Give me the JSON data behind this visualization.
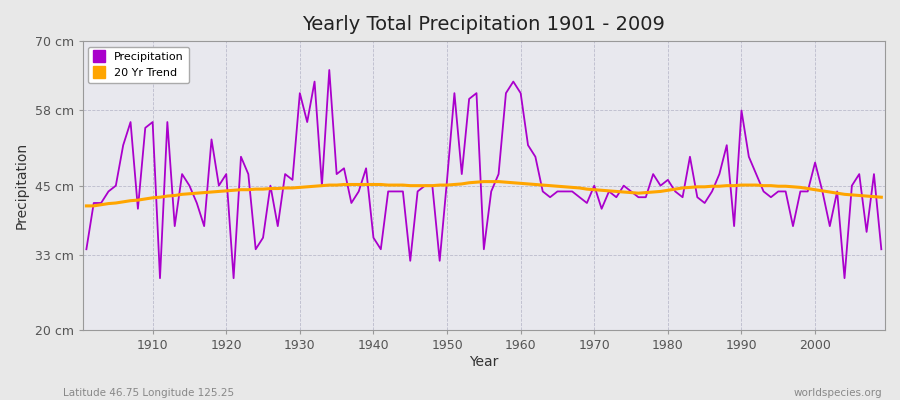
{
  "title": "Yearly Total Precipitation 1901 - 2009",
  "xlabel": "Year",
  "ylabel": "Precipitation",
  "subtitle_left": "Latitude 46.75 Longitude 125.25",
  "subtitle_right": "worldspecies.org",
  "ylim": [
    20,
    70
  ],
  "yticks": [
    20,
    33,
    45,
    58,
    70
  ],
  "ytick_labels": [
    "20 cm",
    "33 cm",
    "45 cm",
    "58 cm",
    "70 cm"
  ],
  "xlim": [
    1901,
    2009
  ],
  "xticks": [
    1910,
    1920,
    1930,
    1940,
    1950,
    1960,
    1970,
    1980,
    1990,
    2000
  ],
  "precip_color": "#AA00CC",
  "trend_color": "#FFA500",
  "bg_color": "#E8E8E8",
  "inner_bg_color": "#E8E8EE",
  "grid_color": "#BBBBCC",
  "years": [
    1901,
    1902,
    1903,
    1904,
    1905,
    1906,
    1907,
    1908,
    1909,
    1910,
    1911,
    1912,
    1913,
    1914,
    1915,
    1916,
    1917,
    1918,
    1919,
    1920,
    1921,
    1922,
    1923,
    1924,
    1925,
    1926,
    1927,
    1928,
    1929,
    1930,
    1931,
    1932,
    1933,
    1934,
    1935,
    1936,
    1937,
    1938,
    1939,
    1940,
    1941,
    1942,
    1943,
    1944,
    1945,
    1946,
    1947,
    1948,
    1949,
    1950,
    1951,
    1952,
    1953,
    1954,
    1955,
    1956,
    1957,
    1958,
    1959,
    1960,
    1961,
    1962,
    1963,
    1964,
    1965,
    1966,
    1967,
    1968,
    1969,
    1970,
    1971,
    1972,
    1973,
    1974,
    1975,
    1976,
    1977,
    1978,
    1979,
    1980,
    1981,
    1982,
    1983,
    1984,
    1985,
    1986,
    1987,
    1988,
    1989,
    1990,
    1991,
    1992,
    1993,
    1994,
    1995,
    1996,
    1997,
    1998,
    1999,
    2000,
    2001,
    2002,
    2003,
    2004,
    2005,
    2006,
    2007,
    2008,
    2009
  ],
  "precip": [
    34,
    42,
    42,
    44,
    45,
    52,
    56,
    41,
    55,
    56,
    29,
    56,
    38,
    47,
    45,
    42,
    38,
    53,
    45,
    47,
    29,
    50,
    47,
    34,
    36,
    45,
    38,
    47,
    46,
    61,
    56,
    63,
    45,
    65,
    47,
    48,
    42,
    44,
    48,
    36,
    34,
    44,
    44,
    44,
    32,
    44,
    45,
    45,
    32,
    46,
    61,
    47,
    60,
    61,
    34,
    44,
    47,
    61,
    63,
    61,
    52,
    50,
    44,
    43,
    44,
    44,
    44,
    43,
    42,
    45,
    41,
    44,
    43,
    45,
    44,
    43,
    43,
    47,
    45,
    46,
    44,
    43,
    50,
    43,
    42,
    44,
    47,
    52,
    38,
    58,
    50,
    47,
    44,
    43,
    44,
    44,
    38,
    44,
    44,
    49,
    44,
    38,
    44,
    29,
    45,
    47,
    37,
    47,
    34
  ],
  "trend": [
    41.5,
    41.5,
    41.7,
    41.9,
    42.0,
    42.2,
    42.4,
    42.5,
    42.7,
    42.9,
    43.0,
    43.2,
    43.3,
    43.5,
    43.6,
    43.7,
    43.8,
    43.9,
    44.0,
    44.1,
    44.2,
    44.3,
    44.3,
    44.4,
    44.4,
    44.5,
    44.5,
    44.6,
    44.6,
    44.7,
    44.8,
    44.9,
    45.0,
    45.1,
    45.1,
    45.2,
    45.2,
    45.2,
    45.2,
    45.2,
    45.2,
    45.1,
    45.1,
    45.1,
    45.0,
    45.0,
    45.0,
    45.0,
    45.1,
    45.1,
    45.2,
    45.3,
    45.5,
    45.6,
    45.7,
    45.7,
    45.7,
    45.6,
    45.5,
    45.4,
    45.3,
    45.2,
    45.1,
    45.0,
    44.9,
    44.8,
    44.7,
    44.6,
    44.4,
    44.3,
    44.2,
    44.1,
    44.0,
    43.9,
    43.8,
    43.7,
    43.8,
    43.9,
    44.0,
    44.2,
    44.4,
    44.6,
    44.7,
    44.8,
    44.8,
    44.9,
    44.9,
    45.0,
    45.0,
    45.1,
    45.1,
    45.1,
    45.0,
    45.0,
    44.9,
    44.9,
    44.8,
    44.7,
    44.5,
    44.3,
    44.1,
    43.9,
    43.7,
    43.5,
    43.4,
    43.3,
    43.2,
    43.1,
    43.0
  ]
}
